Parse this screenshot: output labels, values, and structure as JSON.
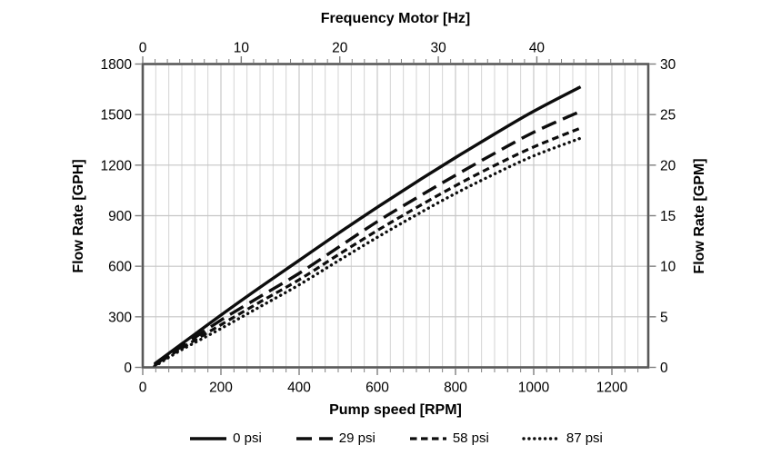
{
  "chart_data": {
    "type": "line",
    "top_axis": {
      "label": "Frequency Motor [Hz]",
      "ticks": [
        0,
        10,
        20,
        30,
        40
      ],
      "minor_step": 1.25,
      "hz_to_rpm": 25.2
    },
    "bottom_axis": {
      "label": "Pump speed [RPM]",
      "ticks": [
        0,
        200,
        400,
        600,
        800,
        1000,
        1200
      ],
      "min": 0,
      "max": 1293,
      "minor_step": 33.33
    },
    "left_axis": {
      "label": "Flow Rate [GPH]",
      "ticks": [
        0,
        300,
        600,
        900,
        1200,
        1500,
        1800
      ],
      "min": 0,
      "max": 1800
    },
    "right_axis": {
      "label": "Flow Rate [GPM]",
      "ticks": [
        0,
        5,
        10,
        15,
        20,
        25,
        30
      ],
      "min": 0,
      "max": 30
    },
    "series": [
      {
        "name": "0 psi",
        "style": "solid",
        "points": [
          [
            30,
            20
          ],
          [
            100,
            140
          ],
          [
            200,
            310
          ],
          [
            300,
            475
          ],
          [
            400,
            635
          ],
          [
            500,
            795
          ],
          [
            600,
            950
          ],
          [
            700,
            1100
          ],
          [
            800,
            1245
          ],
          [
            900,
            1385
          ],
          [
            1000,
            1520
          ],
          [
            1120,
            1665
          ]
        ]
      },
      {
        "name": "29 psi",
        "style": "long-dash",
        "points": [
          [
            30,
            14
          ],
          [
            100,
            125
          ],
          [
            200,
            280
          ],
          [
            300,
            420
          ],
          [
            400,
            558
          ],
          [
            500,
            712
          ],
          [
            600,
            865
          ],
          [
            700,
            1005
          ],
          [
            800,
            1140
          ],
          [
            900,
            1270
          ],
          [
            1000,
            1395
          ],
          [
            1120,
            1520
          ]
        ]
      },
      {
        "name": "58 psi",
        "style": "dash",
        "points": [
          [
            30,
            10
          ],
          [
            100,
            115
          ],
          [
            200,
            253
          ],
          [
            300,
            388
          ],
          [
            400,
            520
          ],
          [
            500,
            668
          ],
          [
            600,
            812
          ],
          [
            700,
            948
          ],
          [
            800,
            1078
          ],
          [
            900,
            1198
          ],
          [
            1000,
            1308
          ],
          [
            1120,
            1420
          ]
        ]
      },
      {
        "name": "87 psi",
        "style": "dot",
        "points": [
          [
            30,
            6
          ],
          [
            100,
            105
          ],
          [
            200,
            230
          ],
          [
            300,
            360
          ],
          [
            400,
            490
          ],
          [
            500,
            632
          ],
          [
            600,
            772
          ],
          [
            700,
            905
          ],
          [
            800,
            1032
          ],
          [
            900,
            1148
          ],
          [
            1000,
            1255
          ],
          [
            1120,
            1360
          ]
        ]
      }
    ],
    "legend_position": "bottom",
    "grid": {
      "horizontal": true,
      "vertical_minor": true,
      "vertical_major": true
    },
    "colors": {
      "line": "#0d0d0d",
      "grid_minor": "#d4d4d4",
      "grid_major": "#bdbdbd",
      "grid_horizontal": "#c6c6c6",
      "border": "#595959",
      "tick": "#7f7f7f",
      "text": "#000000",
      "background": "#ffffff"
    }
  }
}
